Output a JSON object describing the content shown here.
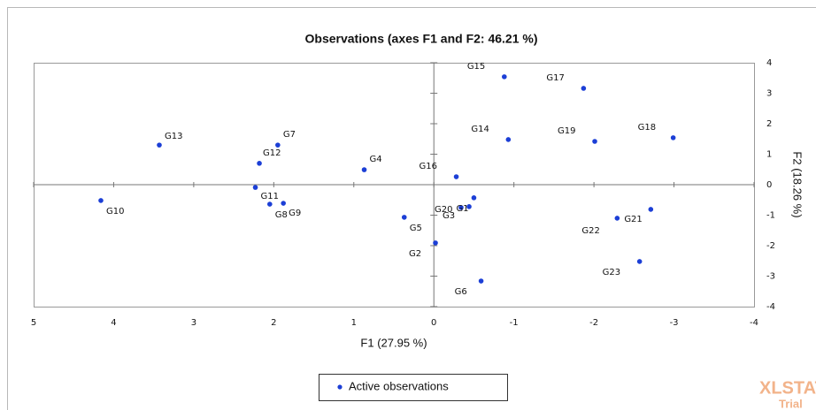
{
  "chart_data": {
    "type": "scatter",
    "title": "Observations (axes F1 and F2: 46.21 %)",
    "x_label": "F1 (27.95 %)",
    "y_label": "F2 (18.26 %)",
    "xlim": [
      5,
      -4
    ],
    "ylim": [
      -4,
      4
    ],
    "xticks": [
      5,
      4,
      3,
      2,
      1,
      0,
      -1,
      -2,
      -3,
      -4
    ],
    "yticks": [
      -4,
      -3,
      -2,
      -1,
      0,
      1,
      2,
      3,
      4
    ],
    "series": [
      {
        "name": "Active observations",
        "color": "#1c3fd6",
        "labels": [
          "G15",
          "G17",
          "G13",
          "G7",
          "G14",
          "G19",
          "G18",
          "G12",
          "G4",
          "G16",
          "G11",
          "G10",
          "G8",
          "G9",
          "G20",
          "G3",
          "G1",
          "G5",
          "G21",
          "G22",
          "G2",
          "G23",
          "G6"
        ],
        "x": [
          -0.88,
          -1.87,
          3.43,
          1.95,
          -0.93,
          -2.01,
          -2.99,
          2.18,
          0.87,
          -0.28,
          2.23,
          4.16,
          2.05,
          1.88,
          -0.34,
          -0.44,
          -0.5,
          0.37,
          -2.71,
          -2.29,
          -0.02,
          -2.57,
          -0.59
        ],
        "values": [
          3.54,
          3.16,
          1.3,
          1.3,
          1.48,
          1.42,
          1.54,
          0.7,
          0.49,
          0.26,
          -0.09,
          -0.52,
          -0.64,
          -0.61,
          -0.75,
          -0.72,
          -0.43,
          -1.07,
          -0.81,
          -1.1,
          -1.91,
          -2.52,
          -3.16
        ]
      }
    ],
    "watermark": [
      "XLSTAT",
      "Trial"
    ]
  }
}
